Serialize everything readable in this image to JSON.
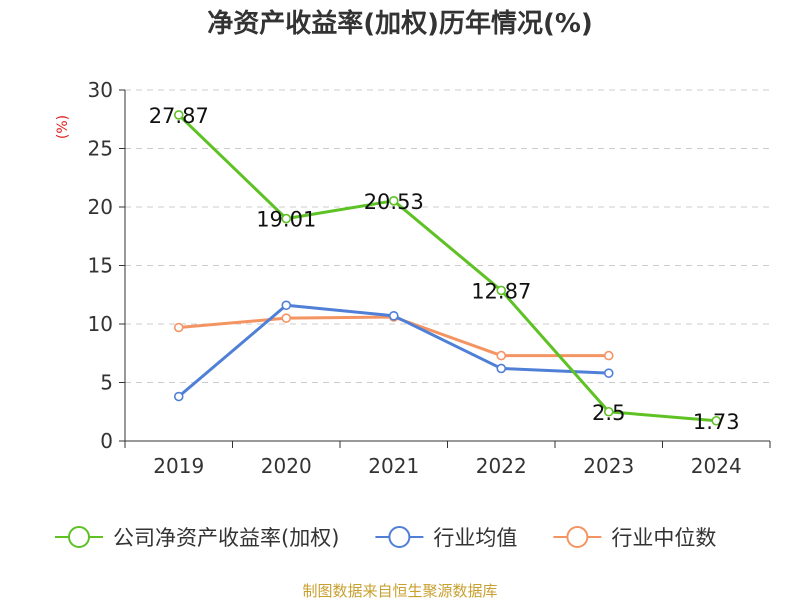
{
  "chart_data": {
    "type": "line",
    "title": "净资产收益率(加权)历年情况(%)",
    "ylabel": "(%)",
    "xlabel": "",
    "categories": [
      "2019",
      "2020",
      "2021",
      "2022",
      "2023",
      "2024"
    ],
    "ylim": [
      0,
      30
    ],
    "yticks": [
      0,
      5,
      10,
      15,
      20,
      25,
      30
    ],
    "grid": true,
    "legend_position": "bottom",
    "series": [
      {
        "name": "公司净资产收益率(加权)",
        "color": "#5ec124",
        "values": [
          27.87,
          19.01,
          20.53,
          12.87,
          2.5,
          1.73
        ],
        "labels": [
          "27.87",
          "19.01",
          "20.53",
          "12.87",
          "2.5",
          "1.73"
        ]
      },
      {
        "name": "行业均值",
        "color": "#4f7fd6",
        "values": [
          3.8,
          11.6,
          10.7,
          6.2,
          5.8,
          null
        ]
      },
      {
        "name": "行业中位数",
        "color": "#f59463",
        "values": [
          9.7,
          10.5,
          10.6,
          7.3,
          7.3,
          null
        ]
      }
    ]
  },
  "source": "制图数据来自恒生聚源数据库",
  "colors": {
    "ylabel": "#e02020",
    "source": "#c8a030",
    "grid": "#cccccc",
    "axis": "#333333"
  }
}
